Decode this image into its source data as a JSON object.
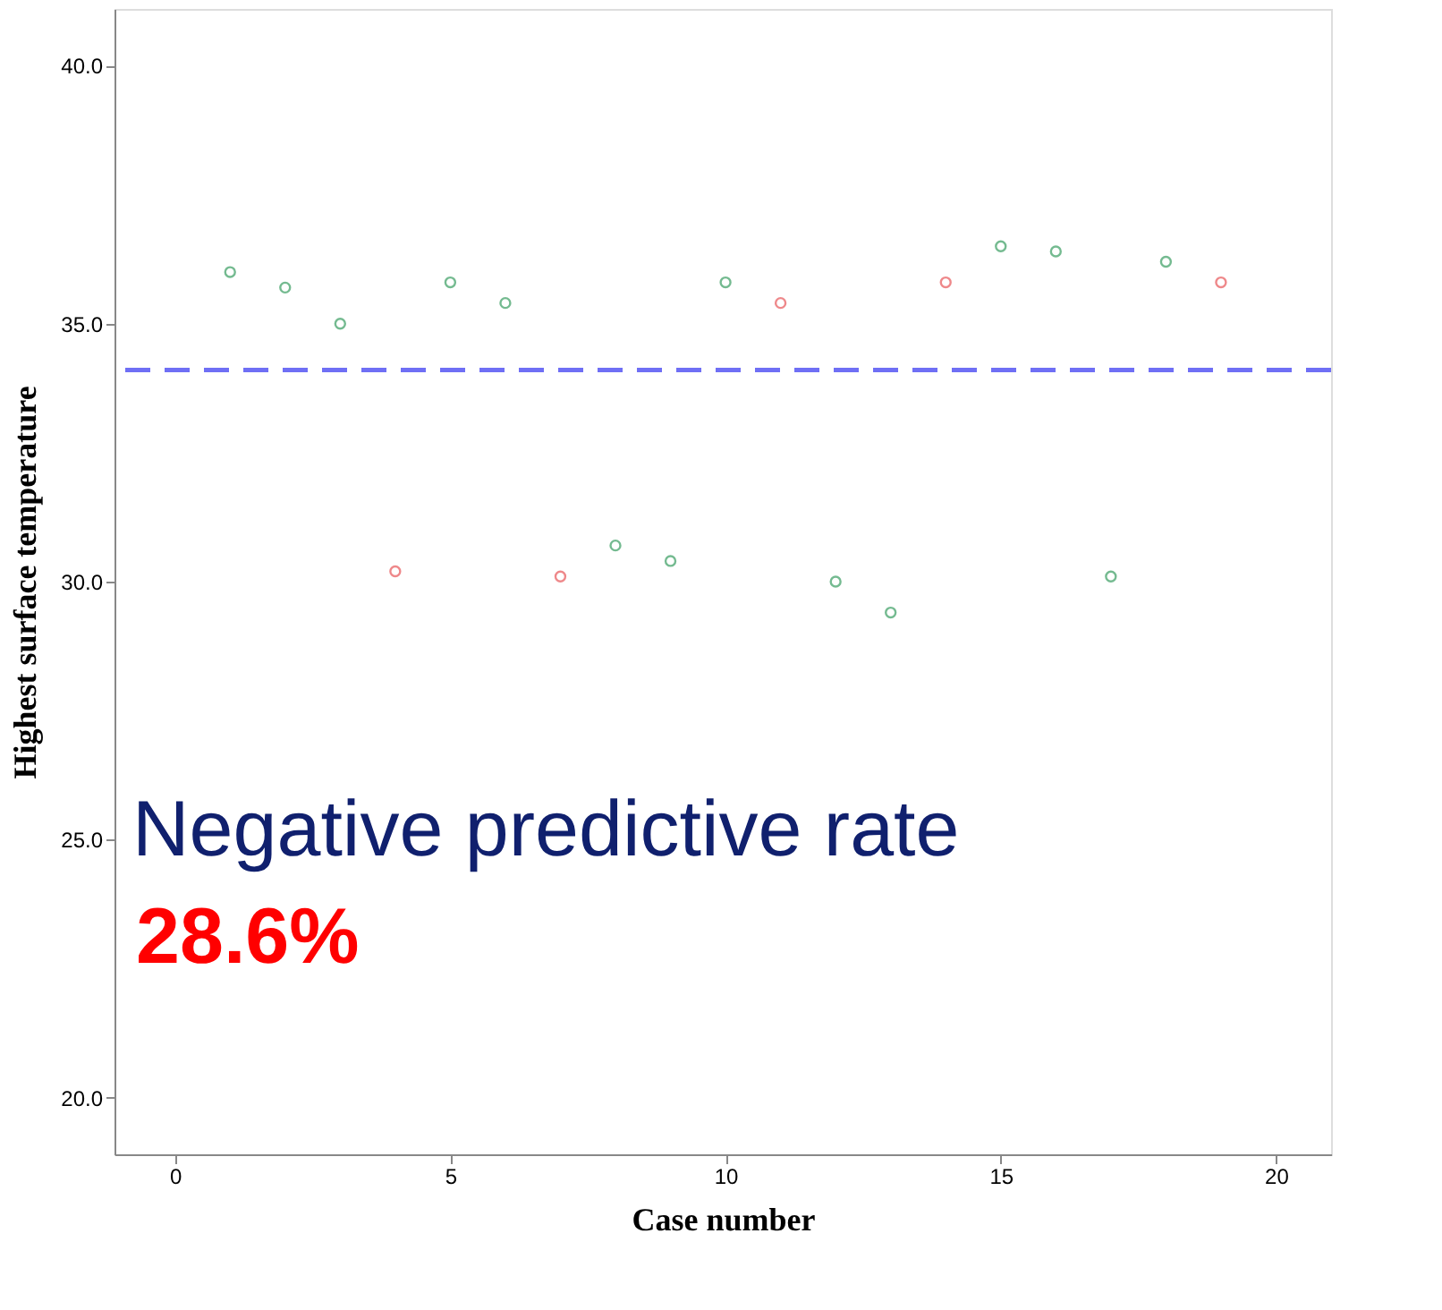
{
  "chart_data": {
    "type": "scatter",
    "xlabel": "Case number",
    "ylabel": "Highest surface temperature",
    "marker": "circle",
    "grid": false,
    "legend": false,
    "series": [
      {
        "color": "#3a9e62",
        "x": [
          1,
          2,
          3,
          5,
          6,
          8,
          9,
          10,
          12,
          13,
          15,
          16,
          17,
          18
        ],
        "values": [
          36.0,
          35.7,
          35.0,
          35.8,
          35.4,
          30.7,
          30.4,
          35.8,
          30.0,
          29.4,
          36.5,
          36.4,
          30.1,
          36.2
        ]
      },
      {
        "color": "#e8575a",
        "x": [
          4,
          7,
          11,
          14,
          19
        ],
        "values": [
          30.2,
          30.1,
          35.4,
          35.8,
          35.8
        ]
      }
    ],
    "xlim": [
      -1.1,
      21
    ],
    "xticks": [
      0,
      5,
      10,
      15,
      20
    ],
    "ylim": [
      18.9,
      41.1
    ],
    "yticks": [
      {
        "value": 20,
        "label": "20.0"
      },
      {
        "value": 25,
        "label": "25.0"
      },
      {
        "value": 30,
        "label": "30.0"
      },
      {
        "value": 35,
        "label": "35.0"
      },
      {
        "value": 40,
        "label": "40.0"
      }
    ],
    "ref_lines": [
      {
        "axis": "y",
        "value": 34.1,
        "color": "#6f6ff5",
        "line_style": "dashed"
      }
    ],
    "annotations": [
      "Negative predictive rate",
      "28.6%"
    ]
  }
}
